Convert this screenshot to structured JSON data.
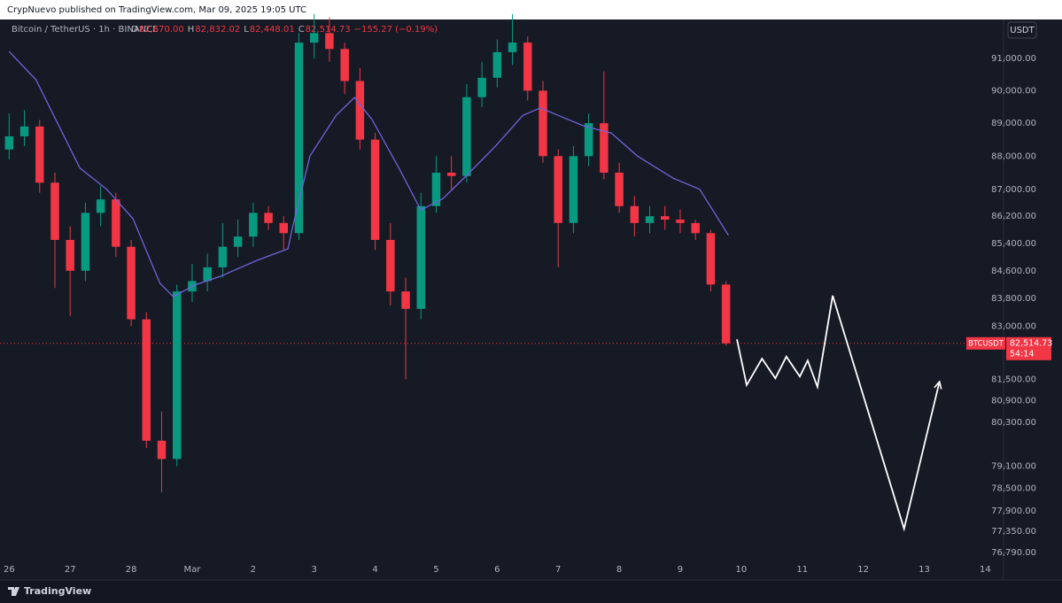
{
  "header": {
    "text": "CrypNuevo published on TradingView.com, Mar 09, 2025 19:05 UTC"
  },
  "footer": {
    "brand": "TradingView"
  },
  "chart_data": {
    "type": "candlestick",
    "title": "Bitcoin / TetherUS · 1h · BINANCE",
    "ohlc_header": [
      {
        "key": "O",
        "value": "82,670.00"
      },
      {
        "key": "H",
        "value": "82,832.02"
      },
      {
        "key": "L",
        "value": "82,448.01"
      },
      {
        "key": "C",
        "value": "82,514.73"
      }
    ],
    "change": "−155.27 (−0.19%)",
    "currency": "USDT",
    "symbol_tag": "BTCUSDT",
    "last_price": {
      "value": 82514.73,
      "label": "82,514.73"
    },
    "countdown": "54:14",
    "log_scale": true,
    "grid": false,
    "up_color": "#089981",
    "down_color": "#f23645",
    "x": [
      0,
      0.25,
      0.5,
      0.75,
      1,
      1.25,
      1.5,
      1.75,
      2,
      2.25,
      2.5,
      2.75,
      3,
      3.25,
      3.5,
      3.75,
      4,
      4.25,
      4.5,
      4.75,
      5,
      5.25,
      5.5,
      5.75,
      6,
      6.25,
      6.5,
      6.75,
      7,
      7.25,
      7.5,
      7.75,
      8,
      8.25,
      8.5,
      8.75,
      9,
      9.25,
      9.5,
      9.75,
      10,
      10.25,
      10.5,
      10.75,
      11,
      11.25,
      11.5,
      11.75
    ],
    "open": [
      88200,
      88600,
      88900,
      87200,
      85500,
      84600,
      86300,
      86700,
      85300,
      83200,
      79800,
      79300,
      84000,
      84300,
      84700,
      85300,
      85600,
      86300,
      86000,
      85700,
      91500,
      91800,
      91300,
      90300,
      88500,
      85500,
      84000,
      83500,
      86500,
      87500,
      87400,
      89800,
      90400,
      91200,
      91500,
      90000,
      88000,
      86000,
      88000,
      89000,
      87500,
      86500,
      86000,
      86200,
      86100,
      86000,
      85700,
      84200
    ],
    "high": [
      89300,
      89400,
      89100,
      87500,
      85900,
      86600,
      87100,
      86900,
      85500,
      83400,
      80600,
      84200,
      84800,
      85100,
      86000,
      86100,
      86600,
      86500,
      86200,
      91800,
      92400,
      92300,
      91500,
      90700,
      88700,
      86000,
      84400,
      86900,
      88000,
      88000,
      90200,
      90900,
      91600,
      92400,
      91700,
      90300,
      88200,
      88300,
      89300,
      90600,
      87800,
      86800,
      86500,
      86500,
      86400,
      86100,
      85800,
      84300
    ],
    "low": [
      87900,
      88300,
      86900,
      84100,
      83300,
      84300,
      85900,
      85000,
      83000,
      79600,
      78400,
      79100,
      83700,
      84000,
      84400,
      85000,
      85300,
      85800,
      85200,
      85500,
      91000,
      90900,
      89900,
      88200,
      85200,
      83600,
      81500,
      83200,
      86300,
      87000,
      87200,
      89500,
      90100,
      90800,
      89700,
      87800,
      84700,
      85700,
      87700,
      87300,
      86300,
      85600,
      85700,
      85800,
      85700,
      85500,
      84000,
      82448
    ],
    "close": [
      88600,
      88900,
      87200,
      85500,
      84600,
      86300,
      86700,
      85300,
      83200,
      79800,
      79300,
      84000,
      84300,
      84700,
      85300,
      85600,
      86300,
      86000,
      85700,
      91500,
      91800,
      91300,
      90300,
      88500,
      85500,
      84000,
      83500,
      86500,
      87500,
      87400,
      89800,
      90400,
      91200,
      91500,
      90000,
      88000,
      86000,
      88000,
      89000,
      87500,
      86500,
      86000,
      86200,
      86100,
      86000,
      85700,
      84200,
      82515
    ],
    "ma": {
      "color": "#6f63d8",
      "x": [
        0,
        0.44,
        0.73,
        1.16,
        1.6,
        2.03,
        2.47,
        2.69,
        3.05,
        3.48,
        4.06,
        4.57,
        4.64,
        4.93,
        5.36,
        5.66,
        5.95,
        6.39,
        6.75,
        7.11,
        7.55,
        7.98,
        8.42,
        8.71,
        9.0,
        9.43,
        9.87,
        10.3,
        10.89,
        11.32,
        11.79
      ],
      "values": [
        91220,
        90340,
        89240,
        87640,
        87000,
        86130,
        84240,
        83850,
        84190,
        84450,
        84900,
        85240,
        85830,
        88000,
        89240,
        89790,
        89110,
        87640,
        86380,
        86720,
        87510,
        88320,
        89240,
        89470,
        89240,
        88910,
        88700,
        88000,
        87330,
        87000,
        85640
      ]
    },
    "projection": {
      "color": "#ffffff",
      "x": [
        11.93,
        12.09,
        12.34,
        12.56,
        12.74,
        12.96,
        13.09,
        13.25,
        13.5,
        14.67,
        15.25
      ],
      "values": [
        82630,
        81340,
        82080,
        81530,
        82140,
        81580,
        82030,
        81290,
        83880,
        77420,
        81440
      ]
    },
    "xlim": [
      -0.15,
      16.3
    ],
    "xticks": [
      {
        "value": 0,
        "label": "26"
      },
      {
        "value": 1,
        "label": "27"
      },
      {
        "value": 2,
        "label": "28"
      },
      {
        "value": 3,
        "label": "Mar"
      },
      {
        "value": 4,
        "label": "2"
      },
      {
        "value": 5,
        "label": "3"
      },
      {
        "value": 6,
        "label": "4"
      },
      {
        "value": 7,
        "label": "5"
      },
      {
        "value": 8,
        "label": "6"
      },
      {
        "value": 9,
        "label": "7"
      },
      {
        "value": 10,
        "label": "8"
      },
      {
        "value": 11,
        "label": "9"
      },
      {
        "value": 12,
        "label": "10"
      },
      {
        "value": 13,
        "label": "11"
      },
      {
        "value": 14,
        "label": "12"
      },
      {
        "value": 15,
        "label": "13"
      },
      {
        "value": 16,
        "label": "14"
      }
    ],
    "ylim": [
      76140,
      92230
    ],
    "yticks": [
      {
        "value": 91000,
        "label": "91,000.00"
      },
      {
        "value": 90000,
        "label": "90,000.00"
      },
      {
        "value": 89000,
        "label": "89,000.00"
      },
      {
        "value": 88000,
        "label": "88,000.00"
      },
      {
        "value": 87000,
        "label": "87,000.00"
      },
      {
        "value": 86200,
        "label": "86,200.00"
      },
      {
        "value": 85400,
        "label": "85,400.00"
      },
      {
        "value": 84600,
        "label": "84,600.00"
      },
      {
        "value": 83800,
        "label": "83,800.00"
      },
      {
        "value": 83000,
        "label": "83,000.00"
      },
      {
        "value": 81500,
        "label": "81,500.00"
      },
      {
        "value": 80900,
        "label": "80,900.00"
      },
      {
        "value": 80300,
        "label": "80,300.00"
      },
      {
        "value": 79100,
        "label": "79,100.00"
      },
      {
        "value": 78500,
        "label": "78,500.00"
      },
      {
        "value": 77900,
        "label": "77,900.00"
      },
      {
        "value": 77350,
        "label": "77,350.00"
      },
      {
        "value": 76790,
        "label": "76,790.00"
      }
    ]
  }
}
